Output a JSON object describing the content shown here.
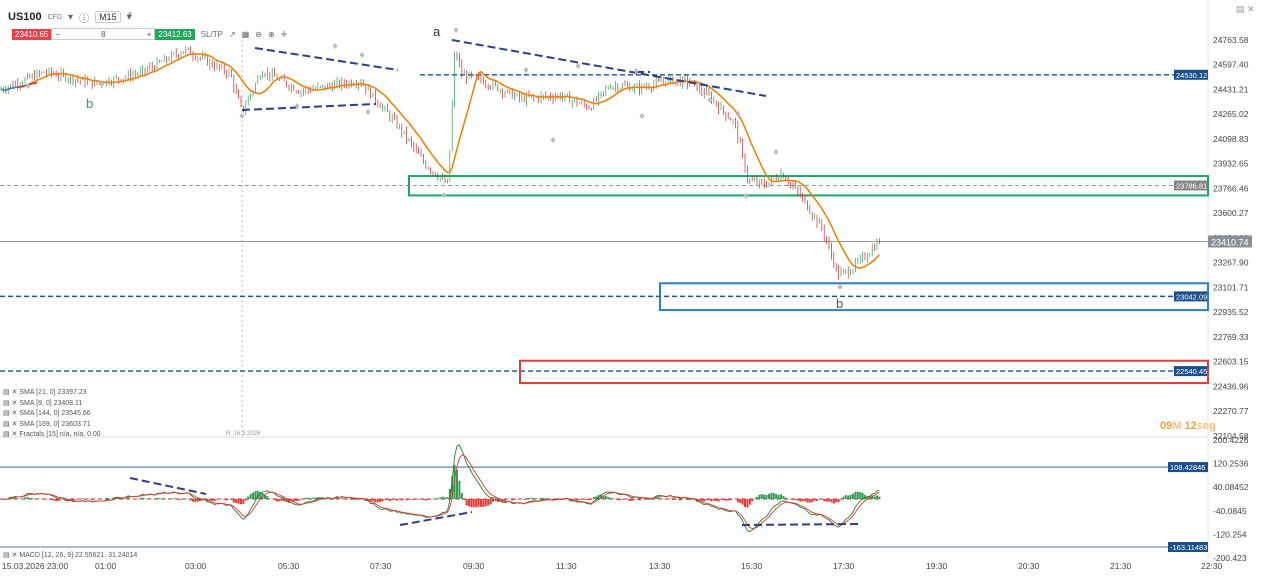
{
  "toolbar": {
    "symbol": "US100",
    "symbol_sub": "CFD",
    "timeframe": "M15",
    "sell_price": "23410.65",
    "lots": "8",
    "buy_price": "23412.63",
    "sltp": "SL/TP"
  },
  "wave_labels": {
    "a": "a",
    "b_left": "b",
    "b_bottom": "b"
  },
  "date_marker": "R: 16.3.2026",
  "indicators": [
    "SMA [21, 0] 23397.23",
    "SMA [9, 0] 23408.11",
    "SMA [144, 0] 23545.66",
    "SMA [169, 0] 23603.71",
    "Fractals [15] n/a, n/a, 0.00"
  ],
  "macd_legend": "MACD [12, 26, 9] 22.55621, 31.24014",
  "timer": {
    "minutes": "09",
    "m": "M",
    "seconds": "12",
    "s": "seg"
  },
  "colors": {
    "sma21": "#2196f3",
    "sma9": "#00bcd4",
    "sma144": "#f57c00",
    "sma169": "#d32f2f",
    "bull": "#2e9e55",
    "bear": "#c62828",
    "level": "#1f4e8c",
    "green_zone": "#1aa86b",
    "blue_zone": "#2b7fc4",
    "red_zone": "#e53935",
    "price_tag": "#1b4f8a"
  },
  "chart_data": {
    "type": "line",
    "x_ticks": [
      "15.03.2026 23:00",
      "01:00",
      "03:00",
      "05:30",
      "07:30",
      "09:30",
      "11:30",
      "13:30",
      "15:30",
      "17:30",
      "19:30",
      "20:30",
      "21:30",
      "22:30"
    ],
    "y_ticks": [
      "24763.58",
      "24597.40",
      "24431.21",
      "24265.02",
      "24098.83",
      "23932.65",
      "23766.46",
      "23600.27",
      "23434.09",
      "23267.90",
      "23101.71",
      "22935.52",
      "22769.33",
      "22603.15",
      "22436.96",
      "22270.77",
      "22104.58"
    ],
    "ylim": [
      22104.58,
      24763.58
    ],
    "current_price": "23410.74",
    "levels": [
      {
        "label": "24530.12",
        "value": 24530.12
      },
      {
        "label": "23786.81",
        "value": 23786.81
      },
      {
        "label": "23042.09",
        "value": 23042.09
      },
      {
        "label": "22540.45",
        "value": 22540.45
      }
    ],
    "series": [
      {
        "name": "Price",
        "x": [
          "15.03 23:00",
          "00:00",
          "01:00",
          "02:00",
          "03:00",
          "03:30",
          "04:00",
          "04:30",
          "05:00",
          "06:00",
          "07:00",
          "07:45",
          "08:15",
          "08:45",
          "09:00",
          "09:15",
          "09:30",
          "10:15",
          "11:00",
          "11:45",
          "12:15",
          "12:45",
          "13:30",
          "14:00",
          "14:30",
          "15:00",
          "15:15",
          "15:45",
          "16:00",
          "16:15",
          "16:30",
          "17:15",
          "17:30",
          "18:00",
          "18:15"
        ],
        "values": [
          24430,
          24550,
          24470,
          24540,
          24700,
          24600,
          24540,
          24280,
          24560,
          24420,
          24490,
          24170,
          23930,
          23790,
          24700,
          24530,
          24500,
          24370,
          24390,
          24310,
          24460,
          24440,
          24490,
          24480,
          24380,
          24200,
          23820,
          23790,
          23870,
          23720,
          23500,
          23190,
          23210,
          23310,
          23420
        ]
      }
    ],
    "macd": {
      "name": "MACD [12, 26, 9]",
      "value": "22.55621",
      "signal": "31.24014",
      "y_ticks": [
        "200.4226",
        "120.2536",
        "40.08452",
        "-40.0845",
        "-120.254",
        "-200.423"
      ],
      "levels": [
        "108.42846",
        "-163.11483"
      ]
    }
  }
}
